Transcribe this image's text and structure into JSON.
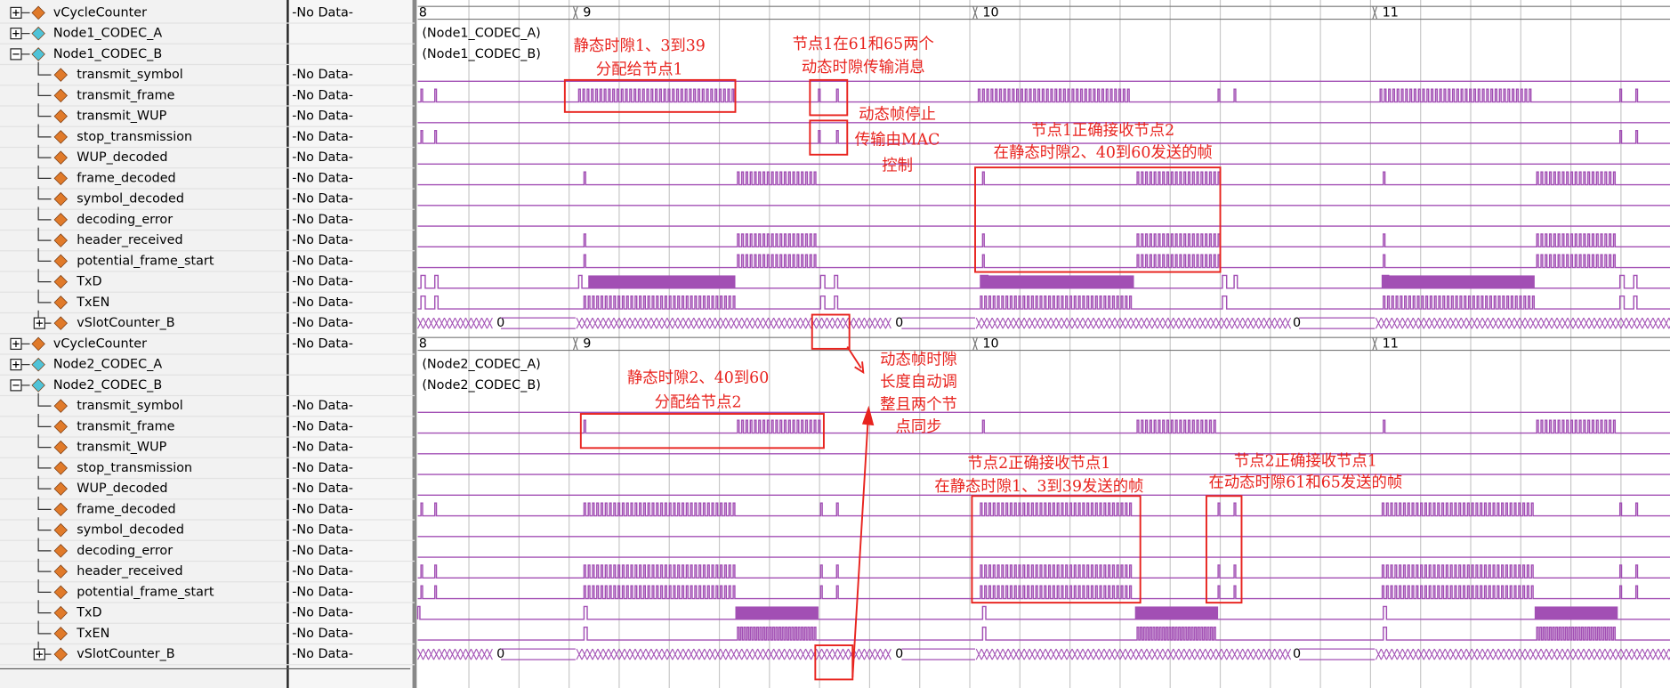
{
  "groups": [
    {
      "rows": [
        {
          "name": "vCycleCounter",
          "value": "-No Data-"
        },
        {
          "name": "Node1_CODEC_A"
        },
        {
          "name": "Node1_CODEC_B"
        },
        {
          "name": "transmit_symbol",
          "value": "-No Data-"
        },
        {
          "name": "transmit_frame",
          "value": "-No Data-"
        },
        {
          "name": "transmit_WUP",
          "value": "-No Data-"
        },
        {
          "name": "stop_transmission",
          "value": "-No Data-"
        },
        {
          "name": "WUP_decoded",
          "value": "-No Data-"
        },
        {
          "name": "frame_decoded",
          "value": "-No Data-"
        },
        {
          "name": "symbol_decoded",
          "value": "-No Data-"
        },
        {
          "name": "decoding_error",
          "value": "-No Data-"
        },
        {
          "name": "header_received",
          "value": "-No Data-"
        },
        {
          "name": "potential_frame_start",
          "value": "-No Data-"
        },
        {
          "name": "TxD",
          "value": "-No Data-"
        },
        {
          "name": "TxEN",
          "value": "-No Data-"
        },
        {
          "name": "vSlotCounter_B",
          "value": "-No Data-"
        }
      ],
      "cycle_labels": [
        "8",
        "9",
        "10",
        "11"
      ],
      "codec_labels": [
        "(Node1_CODEC_A)",
        "(Node1_CODEC_B)"
      ],
      "slot_labels": [
        "0",
        "0",
        "0"
      ]
    },
    {
      "rows": [
        {
          "name": "vCycleCounter",
          "value": "-No Data-"
        },
        {
          "name": "Node2_CODEC_A"
        },
        {
          "name": "Node2_CODEC_B"
        },
        {
          "name": "transmit_symbol",
          "value": "-No Data-"
        },
        {
          "name": "transmit_frame",
          "value": "-No Data-"
        },
        {
          "name": "transmit_WUP",
          "value": "-No Data-"
        },
        {
          "name": "stop_transmission",
          "value": "-No Data-"
        },
        {
          "name": "WUP_decoded",
          "value": "-No Data-"
        },
        {
          "name": "frame_decoded",
          "value": "-No Data-"
        },
        {
          "name": "symbol_decoded",
          "value": "-No Data-"
        },
        {
          "name": "decoding_error",
          "value": "-No Data-"
        },
        {
          "name": "header_received",
          "value": "-No Data-"
        },
        {
          "name": "potential_frame_start",
          "value": "-No Data-"
        },
        {
          "name": "TxD",
          "value": "-No Data-"
        },
        {
          "name": "TxEN",
          "value": "-No Data-"
        },
        {
          "name": "vSlotCounter_B",
          "value": "-No Data-"
        }
      ],
      "cycle_labels": [
        "8",
        "9",
        "10",
        "11"
      ],
      "codec_labels": [
        "(Node2_CODEC_A)",
        "(Node2_CODEC_B)"
      ],
      "slot_labels": [
        "0",
        "0",
        "0"
      ]
    }
  ],
  "annotations": [
    {
      "lines": [
        "静态时隙1、3到39",
        "分配给节点1"
      ]
    },
    {
      "lines": [
        "节点1在61和65两个",
        "动态时隙传输消息"
      ]
    },
    {
      "lines": [
        "动态帧停止",
        "传输由MAC",
        "控制"
      ]
    },
    {
      "lines": [
        "节点1正确接收节点2",
        "在静态时隙2、40到60发送的帧"
      ]
    },
    {
      "lines": [
        "动态帧时隙",
        "长度自动调",
        "整且两个节",
        "点同步"
      ]
    },
    {
      "lines": [
        "静态时隙2、40到60",
        "分配给节点2"
      ]
    },
    {
      "lines": [
        "节点2正确接收节点1",
        "在静态时隙1、3到39发送的帧"
      ]
    },
    {
      "lines": [
        "节点2正确接收节点1",
        "在动态时隙61和65发送的帧"
      ]
    }
  ]
}
